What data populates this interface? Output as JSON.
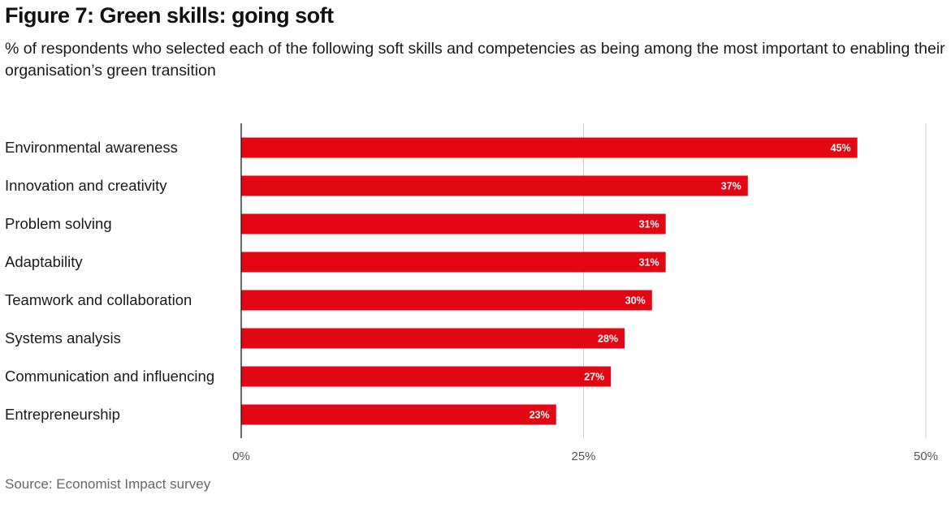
{
  "header": {
    "title": "Figure 7: Green skills: going soft",
    "subtitle": "% of respondents who selected each of the following soft skills and competencies as being among the most important to enabling their organisation’s green transition"
  },
  "footer": {
    "source": "Source: Economist Impact survey"
  },
  "colors": {
    "bar": "#e30613",
    "grid": "#cccccc",
    "axis": "#1a1a1a",
    "value_label": "#ffffff",
    "tick_label": "#555555"
  },
  "chart_data": {
    "type": "bar",
    "orientation": "horizontal",
    "title": "Figure 7: Green skills: going soft",
    "categories": [
      "Environmental awareness",
      "Innovation and creativity",
      "Problem solving",
      "Adaptability",
      "Teamwork and collaboration",
      "Systems analysis",
      "Communication and influencing",
      "Entrepreneurship"
    ],
    "values": [
      45,
      37,
      31,
      31,
      30,
      28,
      27,
      23
    ],
    "value_labels": [
      "45%",
      "37%",
      "31%",
      "31%",
      "30%",
      "28%",
      "27%",
      "23%"
    ],
    "xlim": [
      0,
      50
    ],
    "x_ticks": [
      0,
      25,
      50
    ],
    "x_tick_labels": [
      "0%",
      "25%",
      "50%"
    ],
    "grid": true,
    "legend": "none"
  }
}
